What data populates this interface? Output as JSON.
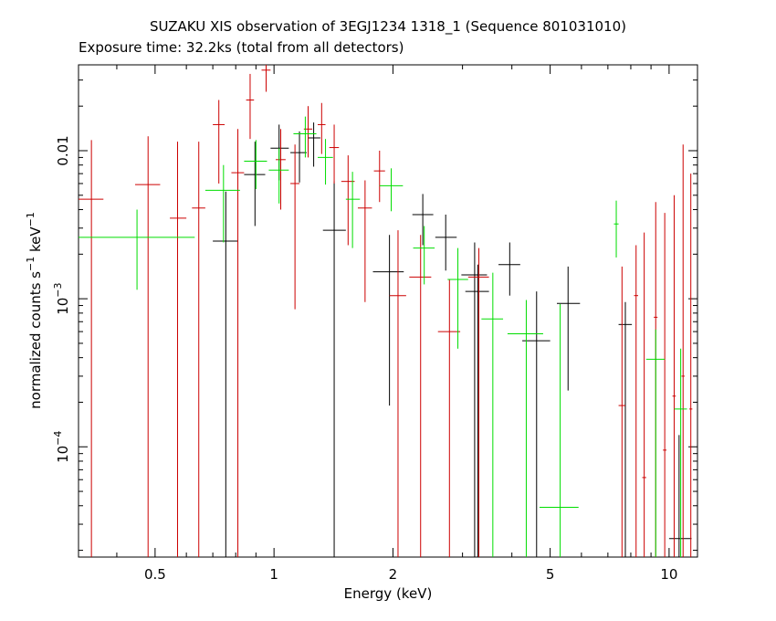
{
  "chart_data": {
    "type": "scatter",
    "title": "SUZAKU XIS observation of 3EGJ1234 1318_1 (Sequence 801031010)",
    "subtitle": "Exposure time: 32.2ks (total from all detectors)",
    "xlabel": "Energy (keV)",
    "ylabel": "normalized counts s⁻¹ keV⁻¹",
    "xscale": "log",
    "yscale": "log",
    "xlim": [
      0.32,
      11.8
    ],
    "ylim": [
      1.8e-05,
      0.038
    ],
    "x_ticks": [
      {
        "value": 0.5,
        "label": "0.5"
      },
      {
        "value": 1,
        "label": "1"
      },
      {
        "value": 2,
        "label": "2"
      },
      {
        "value": 5,
        "label": "5"
      },
      {
        "value": 10,
        "label": "10"
      }
    ],
    "y_ticks": [
      {
        "value": 0.01,
        "label": "0.01",
        "exp": ""
      },
      {
        "value": 0.001,
        "label": "10",
        "exp": "−3"
      },
      {
        "value": 0.0001,
        "label": "10",
        "exp": "−4"
      }
    ],
    "series": [
      {
        "color": "#000000",
        "points": [
          {
            "x": 0.755,
            "xlo": 0.7,
            "xhi": 0.81,
            "y": 0.00245,
            "ylo": 1.8e-05,
            "yhi": 0.0053
          },
          {
            "x": 0.895,
            "xlo": 0.84,
            "xhi": 0.95,
            "y": 0.0069,
            "ylo": 0.0031,
            "yhi": 0.0115
          },
          {
            "x": 1.03,
            "xlo": 0.98,
            "xhi": 1.09,
            "y": 0.0104,
            "ylo": 0.0063,
            "yhi": 0.015
          },
          {
            "x": 1.16,
            "xlo": 1.1,
            "xhi": 1.21,
            "y": 0.0097,
            "ylo": 0.0061,
            "yhi": 0.0135
          },
          {
            "x": 1.26,
            "xlo": 1.22,
            "xhi": 1.31,
            "y": 0.0122,
            "ylo": 0.0078,
            "yhi": 0.0155
          },
          {
            "x": 1.42,
            "xlo": 1.33,
            "xhi": 1.52,
            "y": 0.0029,
            "ylo": 1.8e-05,
            "yhi": 0.0062
          },
          {
            "x": 1.96,
            "xlo": 1.78,
            "xhi": 2.13,
            "y": 0.00152,
            "ylo": 0.00019,
            "yhi": 0.0027
          },
          {
            "x": 2.38,
            "xlo": 2.24,
            "xhi": 2.53,
            "y": 0.0037,
            "ylo": 0.0023,
            "yhi": 0.0051
          },
          {
            "x": 2.72,
            "xlo": 2.56,
            "xhi": 2.9,
            "y": 0.0026,
            "ylo": 0.00155,
            "yhi": 0.0037
          },
          {
            "x": 3.22,
            "xlo": 2.98,
            "xhi": 3.46,
            "y": 0.00145,
            "ylo": 1.8e-05,
            "yhi": 0.0024
          },
          {
            "x": 3.28,
            "xlo": 3.05,
            "xhi": 3.5,
            "y": 0.00112,
            "ylo": 1.8e-05,
            "yhi": 0.0017
          },
          {
            "x": 3.95,
            "xlo": 3.7,
            "xhi": 4.2,
            "y": 0.0017,
            "ylo": 0.00105,
            "yhi": 0.0024
          },
          {
            "x": 4.62,
            "xlo": 4.25,
            "xhi": 5.0,
            "y": 0.00052,
            "ylo": 1.8e-05,
            "yhi": 0.00112
          },
          {
            "x": 5.55,
            "xlo": 5.2,
            "xhi": 5.95,
            "y": 0.00093,
            "ylo": 0.00024,
            "yhi": 0.00165
          },
          {
            "x": 7.75,
            "xlo": 7.45,
            "xhi": 8.05,
            "y": 0.00067,
            "ylo": 1.8e-05,
            "yhi": 0.00095
          },
          {
            "x": 10.6,
            "xlo": 10.0,
            "xhi": 11.4,
            "y": 2.4e-05,
            "ylo": 1.8e-05,
            "yhi": 0.00012
          }
        ]
      },
      {
        "color": "#cc0000",
        "points": [
          {
            "x": 0.345,
            "xlo": 0.32,
            "xhi": 0.37,
            "y": 0.0047,
            "ylo": 1.8e-05,
            "yhi": 0.0118
          },
          {
            "x": 0.48,
            "xlo": 0.445,
            "xhi": 0.515,
            "y": 0.0059,
            "ylo": 1.8e-05,
            "yhi": 0.0125
          },
          {
            "x": 0.57,
            "xlo": 0.545,
            "xhi": 0.6,
            "y": 0.0035,
            "ylo": 1.8e-05,
            "yhi": 0.0115
          },
          {
            "x": 0.645,
            "xlo": 0.62,
            "xhi": 0.67,
            "y": 0.0041,
            "ylo": 1.8e-05,
            "yhi": 0.0115
          },
          {
            "x": 0.725,
            "xlo": 0.7,
            "xhi": 0.75,
            "y": 0.015,
            "ylo": 0.006,
            "yhi": 0.022
          },
          {
            "x": 0.81,
            "xlo": 0.78,
            "xhi": 0.84,
            "y": 0.0071,
            "ylo": 1.8e-05,
            "yhi": 0.014
          },
          {
            "x": 0.87,
            "xlo": 0.85,
            "xhi": 0.89,
            "y": 0.022,
            "ylo": 0.012,
            "yhi": 0.033
          },
          {
            "x": 0.955,
            "xlo": 0.93,
            "xhi": 0.98,
            "y": 0.035,
            "ylo": 0.025,
            "yhi": 0.038
          },
          {
            "x": 1.04,
            "xlo": 1.01,
            "xhi": 1.07,
            "y": 0.0087,
            "ylo": 0.004,
            "yhi": 0.014
          },
          {
            "x": 1.13,
            "xlo": 1.1,
            "xhi": 1.16,
            "y": 0.006,
            "ylo": 0.00085,
            "yhi": 0.011
          },
          {
            "x": 1.22,
            "xlo": 1.19,
            "xhi": 1.25,
            "y": 0.014,
            "ylo": 0.009,
            "yhi": 0.02
          },
          {
            "x": 1.32,
            "xlo": 1.29,
            "xhi": 1.35,
            "y": 0.015,
            "ylo": 0.0095,
            "yhi": 0.021
          },
          {
            "x": 1.42,
            "xlo": 1.38,
            "xhi": 1.46,
            "y": 0.0105,
            "ylo": 0.006,
            "yhi": 0.015
          },
          {
            "x": 1.54,
            "xlo": 1.48,
            "xhi": 1.6,
            "y": 0.0062,
            "ylo": 0.0023,
            "yhi": 0.0093
          },
          {
            "x": 1.7,
            "xlo": 1.63,
            "xhi": 1.77,
            "y": 0.0041,
            "ylo": 0.00095,
            "yhi": 0.0063
          },
          {
            "x": 1.85,
            "xlo": 1.79,
            "xhi": 1.91,
            "y": 0.0073,
            "ylo": 0.0045,
            "yhi": 0.01
          },
          {
            "x": 2.06,
            "xlo": 1.96,
            "xhi": 2.16,
            "y": 0.00105,
            "ylo": 1.8e-05,
            "yhi": 0.0029
          },
          {
            "x": 2.35,
            "xlo": 2.2,
            "xhi": 2.5,
            "y": 0.0014,
            "ylo": 1.8e-05,
            "yhi": 0.0027
          },
          {
            "x": 2.78,
            "xlo": 2.6,
            "xhi": 2.96,
            "y": 0.0006,
            "ylo": 1.8e-05,
            "yhi": 0.00135
          },
          {
            "x": 3.3,
            "xlo": 3.1,
            "xhi": 3.5,
            "y": 0.0014,
            "ylo": 1.8e-05,
            "yhi": 0.0022
          },
          {
            "x": 7.6,
            "xlo": 7.45,
            "xhi": 7.75,
            "y": 0.00019,
            "ylo": 1.8e-05,
            "yhi": 0.00165
          },
          {
            "x": 8.25,
            "xlo": 8.15,
            "xhi": 8.35,
            "y": 0.00105,
            "ylo": 1.8e-05,
            "yhi": 0.0023
          },
          {
            "x": 8.65,
            "xlo": 8.55,
            "xhi": 8.75,
            "y": 6.2e-05,
            "ylo": 1.8e-05,
            "yhi": 0.0028
          },
          {
            "x": 9.25,
            "xlo": 9.15,
            "xhi": 9.35,
            "y": 0.00075,
            "ylo": 1.8e-05,
            "yhi": 0.0045
          },
          {
            "x": 9.75,
            "xlo": 9.65,
            "xhi": 9.85,
            "y": 9.5e-05,
            "ylo": 1.8e-05,
            "yhi": 0.0038
          },
          {
            "x": 10.3,
            "xlo": 10.2,
            "xhi": 10.4,
            "y": 0.00022,
            "ylo": 1.8e-05,
            "yhi": 0.005
          },
          {
            "x": 10.85,
            "xlo": 10.75,
            "xhi": 10.95,
            "y": 0.0003,
            "ylo": 1.8e-05,
            "yhi": 0.011
          },
          {
            "x": 11.35,
            "xlo": 11.25,
            "xhi": 11.45,
            "y": 0.00018,
            "ylo": 1.8e-05,
            "yhi": 0.007
          }
        ]
      },
      {
        "color": "#00dd00",
        "points": [
          {
            "x": 0.45,
            "xlo": 0.32,
            "xhi": 0.63,
            "y": 0.0026,
            "ylo": 0.00115,
            "yhi": 0.004
          },
          {
            "x": 0.745,
            "xlo": 0.67,
            "xhi": 0.82,
            "y": 0.0054,
            "ylo": 0.0024,
            "yhi": 0.008
          },
          {
            "x": 0.9,
            "xlo": 0.84,
            "xhi": 0.96,
            "y": 0.0085,
            "ylo": 0.0055,
            "yhi": 0.0118
          },
          {
            "x": 1.03,
            "xlo": 0.97,
            "xhi": 1.09,
            "y": 0.0074,
            "ylo": 0.0044,
            "yhi": 0.0104
          },
          {
            "x": 1.2,
            "xlo": 1.12,
            "xhi": 1.28,
            "y": 0.013,
            "ylo": 0.009,
            "yhi": 0.017
          },
          {
            "x": 1.35,
            "xlo": 1.29,
            "xhi": 1.41,
            "y": 0.009,
            "ylo": 0.0059,
            "yhi": 0.012
          },
          {
            "x": 1.58,
            "xlo": 1.52,
            "xhi": 1.65,
            "y": 0.0047,
            "ylo": 0.0022,
            "yhi": 0.0072
          },
          {
            "x": 1.98,
            "xlo": 1.85,
            "xhi": 2.12,
            "y": 0.0058,
            "ylo": 0.0039,
            "yhi": 0.0076
          },
          {
            "x": 2.4,
            "xlo": 2.25,
            "xhi": 2.55,
            "y": 0.0022,
            "ylo": 0.00125,
            "yhi": 0.0031
          },
          {
            "x": 2.92,
            "xlo": 2.75,
            "xhi": 3.1,
            "y": 0.00135,
            "ylo": 0.00046,
            "yhi": 0.0022
          },
          {
            "x": 3.58,
            "xlo": 3.35,
            "xhi": 3.8,
            "y": 0.00073,
            "ylo": 1.8e-05,
            "yhi": 0.0015
          },
          {
            "x": 4.35,
            "xlo": 3.9,
            "xhi": 4.8,
            "y": 0.00058,
            "ylo": 1.8e-05,
            "yhi": 0.00098
          },
          {
            "x": 5.3,
            "xlo": 4.7,
            "xhi": 5.9,
            "y": 3.9e-05,
            "ylo": 1.8e-05,
            "yhi": 0.00092
          },
          {
            "x": 7.35,
            "xlo": 7.25,
            "xhi": 7.45,
            "y": 0.0032,
            "ylo": 0.0019,
            "yhi": 0.0046
          },
          {
            "x": 9.25,
            "xlo": 8.75,
            "xhi": 9.75,
            "y": 0.00039,
            "ylo": 1.8e-05,
            "yhi": 0.00062
          },
          {
            "x": 10.7,
            "xlo": 10.3,
            "xhi": 11.1,
            "y": 0.00018,
            "ylo": 1.8e-05,
            "yhi": 0.00046
          }
        ]
      }
    ]
  }
}
